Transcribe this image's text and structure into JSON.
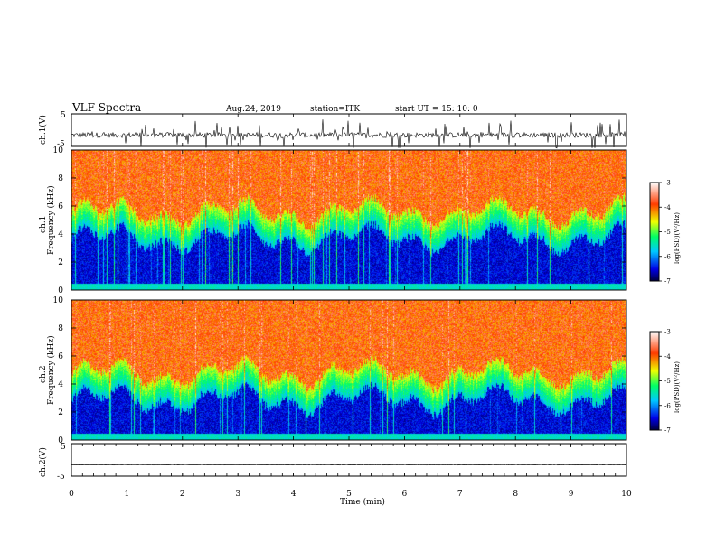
{
  "header": {
    "title": "VLF Spectra",
    "date": "Aug.24, 2019",
    "station": "station=ITK",
    "start": "start UT =  15: 10: 0"
  },
  "panels": {
    "ch1_waveform_label": "ch.1(V)",
    "ch1_spec_label": "ch.1",
    "ch2_spec_label": "ch.2",
    "ch2_waveform_label": "ch.2(V)",
    "freq_label": "Frequency (kHz)",
    "colorbar_label": "log(PSD)(V²/Hz)",
    "time_label": "Time (min)"
  },
  "colors": {
    "palette": [
      "#00003c",
      "#0000e6",
      "#00c8ff",
      "#00ff64",
      "#f0ff00",
      "#ff3c00",
      "#ffffff"
    ]
  },
  "chart_data": [
    {
      "type": "line",
      "name": "ch.1 waveform",
      "ylabel": "ch.1(V)",
      "ylim": [
        -5,
        5
      ],
      "yticks": [
        5,
        -5
      ],
      "xlim": [
        0,
        10
      ],
      "baseline": -1.5
    },
    {
      "type": "heatmap",
      "name": "ch.1 spectrogram",
      "ylabel": "Frequency (kHz)",
      "xlim": [
        0,
        10
      ],
      "ylim": [
        0,
        10
      ],
      "yticks": [
        0,
        2,
        4,
        6,
        8,
        10
      ],
      "colorbar": {
        "label": "log(PSD)(V²/Hz)",
        "range": [
          -7,
          -3
        ],
        "ticks": [
          -3,
          -4,
          -5,
          -6,
          -7
        ]
      }
    },
    {
      "type": "heatmap",
      "name": "ch.2 spectrogram",
      "ylabel": "Frequency (kHz)",
      "xlim": [
        0,
        10
      ],
      "ylim": [
        0,
        10
      ],
      "yticks": [
        0,
        2,
        4,
        6,
        8,
        10
      ],
      "colorbar": {
        "label": "log(PSD)(V²/Hz)",
        "range": [
          -7,
          -3
        ],
        "ticks": [
          -3,
          -4,
          -5,
          -6,
          -7
        ]
      }
    },
    {
      "type": "line",
      "name": "ch.2 waveform",
      "ylabel": "ch.2(V)",
      "ylim": [
        -5,
        5
      ],
      "yticks": [
        5,
        -5
      ],
      "xlim": [
        0,
        10
      ],
      "baseline": -1.5,
      "xticks": [
        0,
        1,
        2,
        3,
        4,
        5,
        6,
        7,
        8,
        9,
        10
      ],
      "xlabel": "Time (min)"
    }
  ]
}
